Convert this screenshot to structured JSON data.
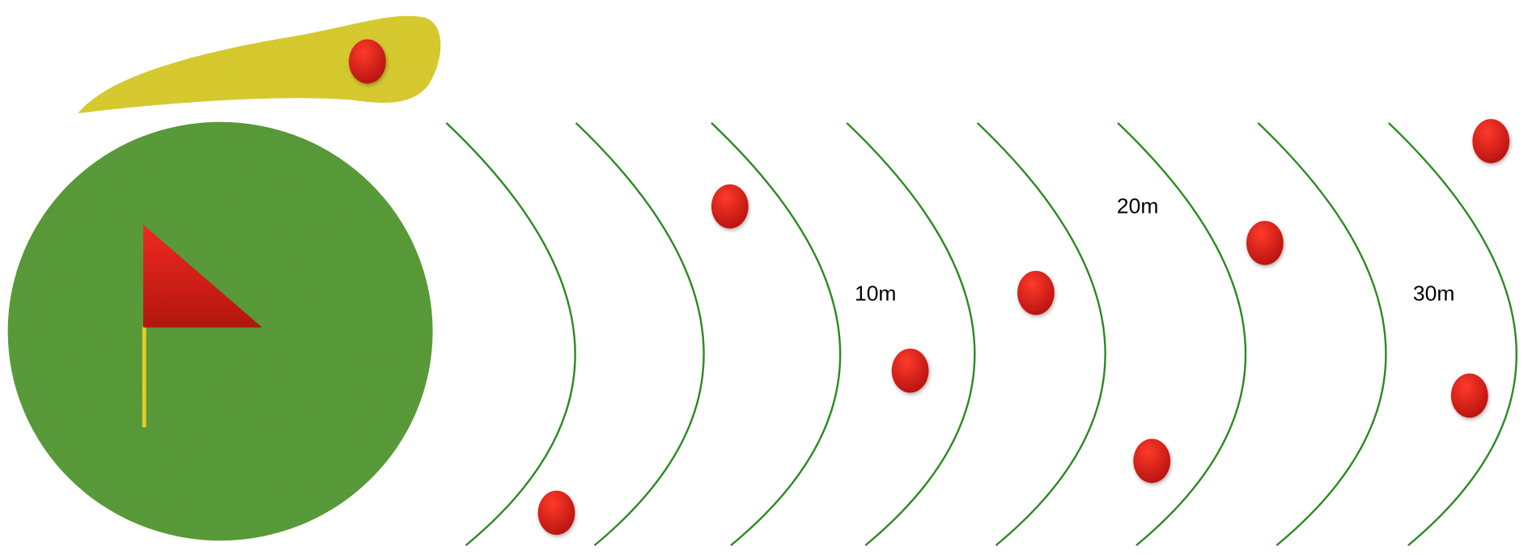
{
  "distance_labels": [
    "10m",
    "20m",
    "30m"
  ]
}
